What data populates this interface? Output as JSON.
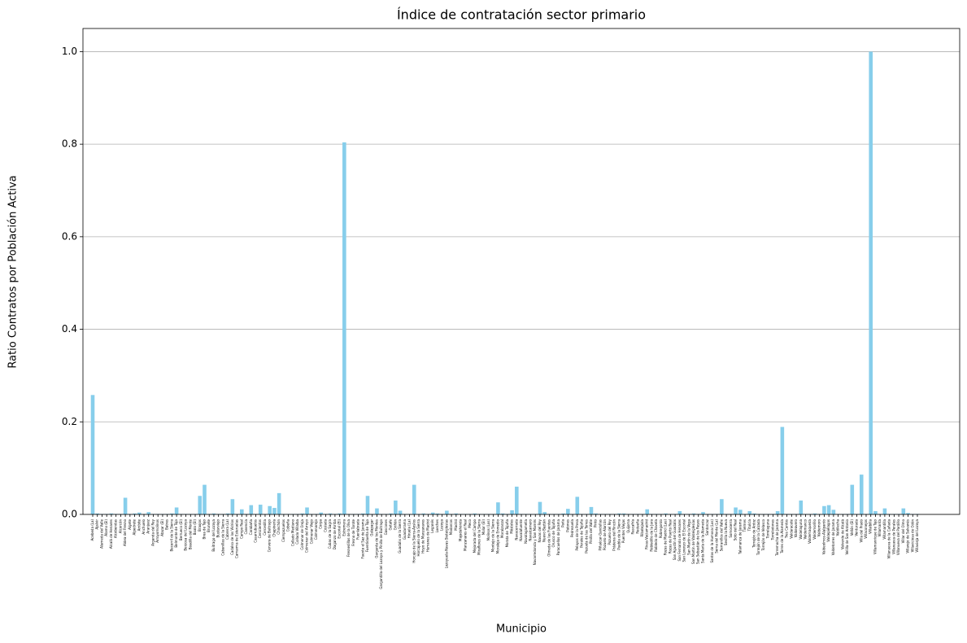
{
  "chart_data": {
    "type": "bar",
    "title": "Índice de contratación sector primario",
    "xlabel": "Municipio",
    "ylabel": "Ratio Contratos por Población Activa",
    "color": "#87ceeb",
    "grid": true,
    "ylim": [
      0,
      1.05
    ],
    "yticks": [
      {
        "value": 0,
        "label": "0.0"
      },
      0.2,
      0.4,
      0.6,
      0.8,
      {
        "value": 1,
        "label": "1.0"
      }
    ],
    "categories": [
      "Acebeda (La)",
      "Ajalvir",
      "Alameda del Valle",
      "Álamo (El)",
      "Alcalá de Henares",
      "Alcobendas",
      "Alcorcón",
      "Aldea del Fresno",
      "Algete",
      "Alpedrete",
      "Ambite",
      "Anchuelo",
      "Aranjuez",
      "Arganda del Rey",
      "Arroyomolinos",
      "Atazar (El)",
      "Batres",
      "Becerril de la Sierra",
      "Belmonte de Tajo",
      "Berrueco (El)",
      "Berzosa del Lozoya",
      "Boadilla del Monte",
      "Boalo (El)",
      "Braojos",
      "Brea de Tajo",
      "Brunete",
      "Buitrago del Lozoya",
      "Bustarviejo",
      "Cabanillas de la Sierra",
      "Cabrera (La)",
      "Cadalso de los Vidrios",
      "Camarma de Esteruelas",
      "Campo Real",
      "Canencia",
      "Carabaña",
      "Casarrubuelos",
      "Cenicientos",
      "Cercedilla",
      "Cervera de Buitrago",
      "Chapinería",
      "Chinchón",
      "Ciempozuelos",
      "Cobeña",
      "Collado Mediano",
      "Collado Villalba",
      "Colmenar de Oreja",
      "Colmenar del Arroyo",
      "Colmenar Viejo",
      "Colmenarejo",
      "Corpa",
      "Coslada",
      "Cubas de la Sagra",
      "Daganzo de Arriba",
      "Escorial (El)",
      "Estremera",
      "Fresnedillas de la Oliva",
      "Fresno de Torote",
      "Fuenlabrada",
      "Fuente el Saz de Jarama",
      "Fuentidueña de Tajo",
      "Galapagar",
      "Garganta de los Montes",
      "Gargantilla del Lozoya y Pinilla de Buitrago",
      "Gascones",
      "Getafe",
      "Griñón",
      "Guadalix de la Sierra",
      "Guadarrama",
      "Hiruela (La)",
      "Horcajo de la Sierra-Aoslos",
      "Horcajuelo de la Sierra",
      "Hoyo de Manzanares",
      "Humanes de Madrid",
      "Leganés",
      "Loeches",
      "Lozoya",
      "Lozoyuela-Navas-Sieteiglesias",
      "Madarcos",
      "Madrid",
      "Majadahonda",
      "Manzanares el Real",
      "Meco",
      "Mejorada del Campo",
      "Miraflores de la Sierra",
      "Molar (El)",
      "Molinos (Los)",
      "Montejo de la Sierra",
      "Moraleja de Enmedio",
      "Moralzarzal",
      "Morata de Tajuña",
      "Móstoles",
      "Navacerrada",
      "Navalafuente",
      "Navalagamella",
      "Navalcarnero",
      "Navarredonda y San Mamés",
      "Navas del Rey",
      "Nuevo Baztán",
      "Olmeda de las Fuentes",
      "Orusco de Tajuña",
      "Paracuellos de Jarama",
      "Parla",
      "Patones",
      "Pedrezuela",
      "Pelayos de la Presa",
      "Perales de Tajuña",
      "Pezuela de las Torres",
      "Pinilla del Valle",
      "Pinto",
      "Piñuécar-Gandullas",
      "Pozuelo de Alarcón",
      "Pozuelo del Rey",
      "Prádena del Rincón",
      "Puebla de la Sierra",
      "Puentes Viejas",
      "Quijorna",
      "Rascafría",
      "Redueña",
      "Ribatejada",
      "Rivas-Vaciamadrid",
      "Robledillo de la Jara",
      "Robledo de Chavela",
      "Robregordo",
      "Rozas de Madrid (Las)",
      "Rozas de Puerto Real",
      "San Agustín del Guadalix",
      "San Fernando de Henares",
      "San Lorenzo de El Escorial",
      "San Martín de la Vega",
      "San Martín de Valdeiglesias",
      "San Sebastián de los Reyes",
      "Santa María de la Alameda",
      "Santorcaz",
      "Santos de la Humosa (Los)",
      "Serna del Monte (La)",
      "Serranillos del Valle",
      "Sevilla la Nueva",
      "Somosierra",
      "Soto del Real",
      "Talamanca de Jarama",
      "Tielmes",
      "Titulcia",
      "Torrejón de Ardoz",
      "Torrejón de la Calzada",
      "Torrejón de Velasco",
      "Torrelaguna",
      "Torrelodones",
      "Torremocha de Jarama",
      "Torres de la Alameda",
      "Tres Cantos",
      "Valdaracete",
      "Valdeavero",
      "Valdelaguna",
      "Valdemanco",
      "Valdemaqueda",
      "Valdemorillo",
      "Valdemoro",
      "Valdeolmos-Alalpardo",
      "Valdepiélagos",
      "Valdetorres de Jarama",
      "Valdilecha",
      "Valverde de Alcalá",
      "Velilla de San Antonio",
      "Vellón (El)",
      "Venturada",
      "Villa del Prado",
      "Villaconejos",
      "Villalbilla",
      "Villamanrique de Tajo",
      "Villamanta",
      "Villamantilla",
      "Villanueva de la Cañada",
      "Villanueva de Perales",
      "Villanueva del Pardillo",
      "Villar del Olmo",
      "Villarejo de Salvanés",
      "Villaviciosa de Odón",
      "Villavieja del Lozoya"
    ],
    "values": [
      0.258,
      0.002,
      0.001,
      0.001,
      0.002,
      0.001,
      0.001,
      0.036,
      0.001,
      0.002,
      0.004,
      0.001,
      0.005,
      0.001,
      0.001,
      0.001,
      0.001,
      0.002,
      0.015,
      0.001,
      0.001,
      0.001,
      0.001,
      0.04,
      0.064,
      0.001,
      0.002,
      0.001,
      0.001,
      0.002,
      0.033,
      0.001,
      0.011,
      0.001,
      0.02,
      0.001,
      0.021,
      0.001,
      0.018,
      0.014,
      0.046,
      0.001,
      0.001,
      0.001,
      0.001,
      0.002,
      0.015,
      0.001,
      0.001,
      0.004,
      0.001,
      0.002,
      0.001,
      0.002,
      0.804,
      0.001,
      0.001,
      0.001,
      0.002,
      0.04,
      0.001,
      0.013,
      0.001,
      0.001,
      0.002,
      0.03,
      0.008,
      0.001,
      0.001,
      0.064,
      0.001,
      0.002,
      0.001,
      0.004,
      0.002,
      0.001,
      0.008,
      0.001,
      0.002,
      0.001,
      0.001,
      0.001,
      0.002,
      0.001,
      0.001,
      0.001,
      0.001,
      0.026,
      0.002,
      0.001,
      0.009,
      0.06,
      0.001,
      0.001,
      0.001,
      0.001,
      0.027,
      0.005,
      0.001,
      0.001,
      0.001,
      0.002,
      0.012,
      0.001,
      0.038,
      0.001,
      0.001,
      0.016,
      0.002,
      0.001,
      0.001,
      0.001,
      0.001,
      0.002,
      0.002,
      0.001,
      0.001,
      0.001,
      0.001,
      0.011,
      0.001,
      0.001,
      0.001,
      0.002,
      0.001,
      0.001,
      0.007,
      0.001,
      0.001,
      0.002,
      0.001,
      0.005,
      0.001,
      0.001,
      0.001,
      0.033,
      0.001,
      0.001,
      0.015,
      0.01,
      0.001,
      0.007,
      0.002,
      0.001,
      0.001,
      0.001,
      0.001,
      0.007,
      0.189,
      0.001,
      0.001,
      0.001,
      0.03,
      0.001,
      0.001,
      0.002,
      0.001,
      0.018,
      0.02,
      0.01,
      0.001,
      0.001,
      0.001,
      0.064,
      0.001,
      0.086,
      0.001,
      1.0,
      0.007,
      0.001,
      0.013,
      0.001,
      0.001,
      0.001,
      0.013,
      0.003,
      0.001,
      0.001
    ]
  }
}
